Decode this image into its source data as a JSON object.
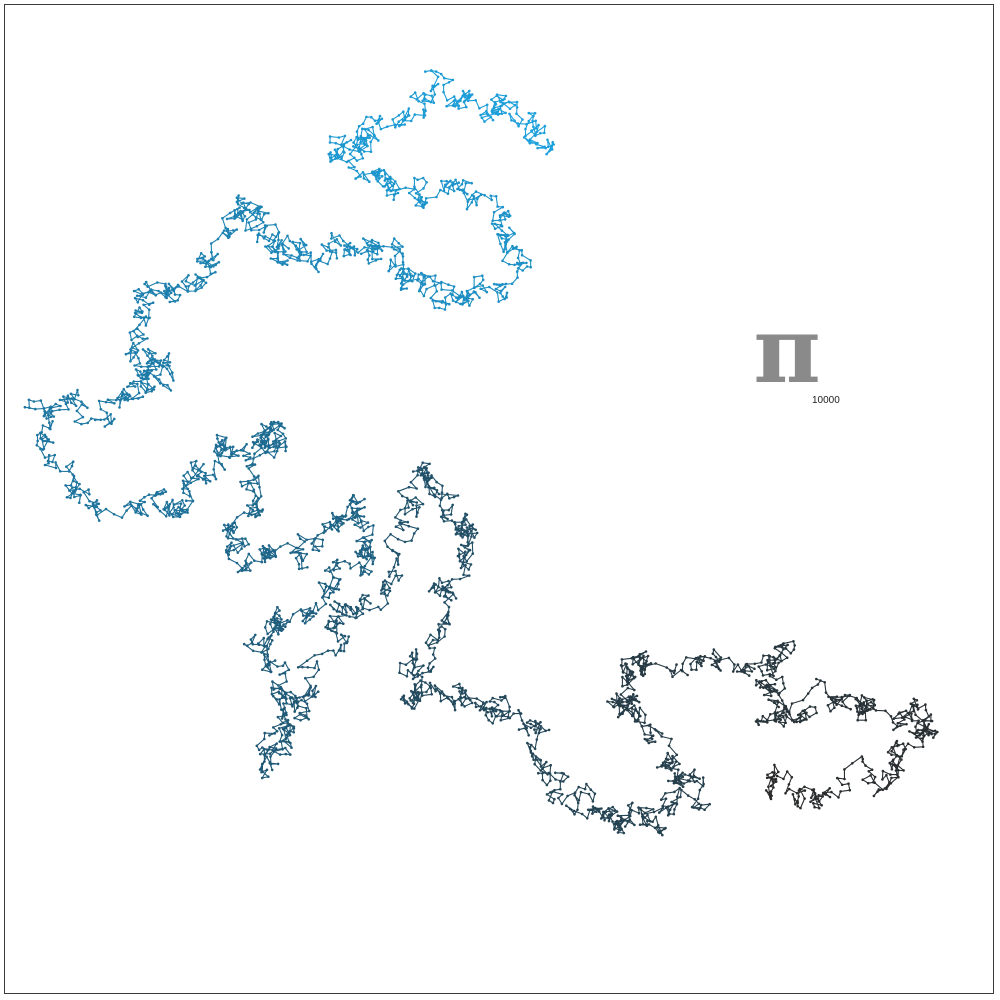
{
  "figure": {
    "symbol": "π",
    "digits": "10000"
  },
  "colors": {
    "start": "#1ca0dc",
    "middle": "#1e5f80",
    "end": "#2a2a2a",
    "symbol": "#8a8a8a",
    "frame": "#3a3a3a"
  }
}
